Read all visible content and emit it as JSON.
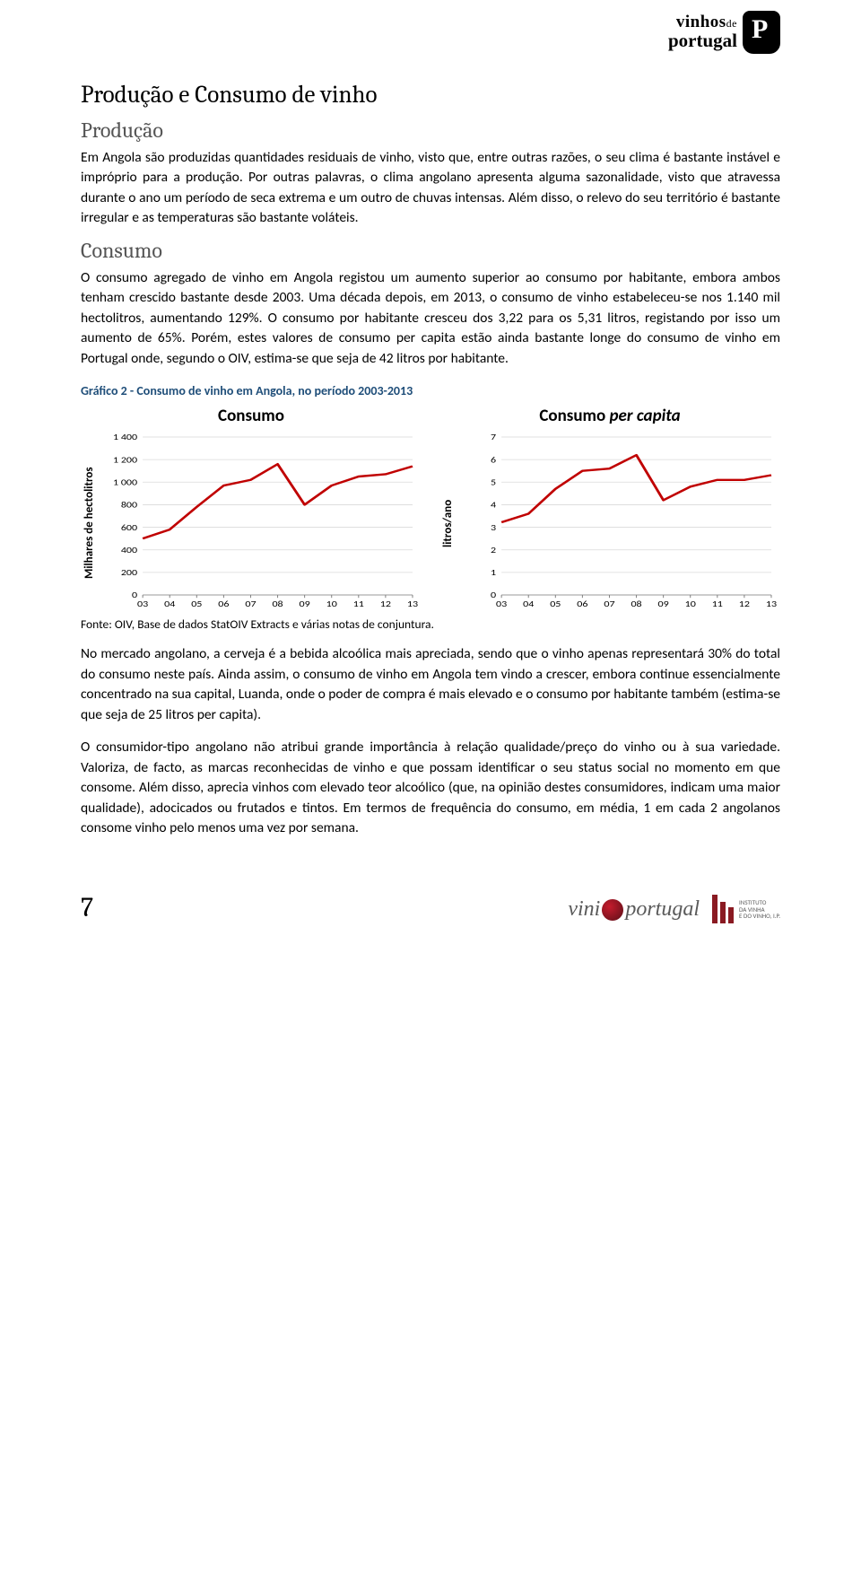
{
  "header_brand": {
    "line1_a": "vinhos",
    "line1_b": "de",
    "line2": "portugal"
  },
  "page_title": "Produção e Consumo de vinho",
  "section_producao": {
    "heading": "Produção",
    "para": "Em Angola são produzidas quantidades residuais de vinho, visto que, entre outras razões, o seu clima é bastante instável e impróprio para a produção. Por outras palavras, o clima angolano apresenta alguma sazonalidade, visto que atravessa durante o ano um período de seca extrema e um outro de chuvas intensas. Além disso, o relevo do seu território é bastante irregular e as temperaturas são bastante voláteis."
  },
  "section_consumo": {
    "heading": "Consumo",
    "para": "O consumo agregado de vinho em Angola registou um aumento superior ao consumo por habitante, embora ambos tenham crescido bastante desde 2003. Uma década depois, em 2013, o consumo de vinho estabeleceu-se nos 1.140 mil hectolitros, aumentando 129%. O consumo por habitante cresceu dos 3,22 para os 5,31 litros, registando por isso um aumento de 65%. Porém, estes valores de consumo per capita estão ainda bastante longe do consumo de vinho em Portugal onde, segundo o OIV, estima-se que seja de 42 litros por habitante."
  },
  "chart_caption": "Gráfico 2 - Consumo de vinho em Angola, no período 2003-2013",
  "chart1": {
    "type": "line",
    "title": "Consumo",
    "ylabel": "Milhares de hectolitros",
    "xlim": [
      0,
      10
    ],
    "ylim": [
      0,
      1400
    ],
    "ytick_step": 200,
    "yticks": [
      "0",
      "200",
      "400",
      "600",
      "800",
      "1 000",
      "1 200",
      "1 400"
    ],
    "xticks": [
      "03",
      "04",
      "05",
      "06",
      "07",
      "08",
      "09",
      "10",
      "11",
      "12",
      "13"
    ],
    "values": [
      500,
      580,
      780,
      970,
      1020,
      1160,
      800,
      970,
      1050,
      1070,
      1140
    ],
    "line_color": "#c00000",
    "line_width": 3,
    "grid_color": "#d9d9d9",
    "background": "#ffffff",
    "tick_fontsize": 12
  },
  "chart2": {
    "type": "line",
    "title": "Consumo per capita",
    "ylabel": "litros/ano",
    "xlim": [
      0,
      10
    ],
    "ylim": [
      0,
      7
    ],
    "ytick_step": 1,
    "yticks": [
      "0",
      "1",
      "2",
      "3",
      "4",
      "5",
      "6",
      "7"
    ],
    "xticks": [
      "03",
      "04",
      "05",
      "06",
      "07",
      "08",
      "09",
      "10",
      "11",
      "12",
      "13"
    ],
    "values": [
      3.22,
      3.6,
      4.7,
      5.5,
      5.6,
      6.2,
      4.2,
      4.8,
      5.1,
      5.1,
      5.31
    ],
    "line_color": "#c00000",
    "line_width": 3,
    "grid_color": "#d9d9d9",
    "background": "#ffffff",
    "tick_fontsize": 12
  },
  "chart_source": "Fonte: OIV, Base de dados StatOIV Extracts e várias notas de conjuntura.",
  "para_after_chart_1": "No mercado angolano, a cerveja é a bebida alcoólica mais apreciada, sendo que o vinho apenas representará 30% do total do consumo neste país. Ainda assim, o consumo de vinho em Angola tem vindo a crescer, embora continue essencialmente concentrado na sua capital, Luanda, onde o poder de compra é mais elevado e o consumo por habitante também (estima-se que seja de 25 litros per capita).",
  "para_after_chart_2": "O consumidor-tipo angolano não atribui grande importância à relação qualidade/preço do vinho ou à sua variedade. Valoriza, de facto, as marcas reconhecidas de vinho e que possam identificar o seu status social no momento em que consome. Além disso, aprecia vinhos com elevado teor alcoólico (que, na opinião destes consumidores, indicam uma maior qualidade), adocicados ou frutados e tintos. Em termos de frequência do consumo, em média, 1 em cada 2 angolanos consome vinho pelo menos uma vez por semana.",
  "footer": {
    "page_number": "7",
    "vini_a": "vini",
    "vini_b": "portugal",
    "ivv_lines": [
      "INSTITUTO",
      "DA VINHA",
      "E DO VINHO, I.P."
    ]
  }
}
